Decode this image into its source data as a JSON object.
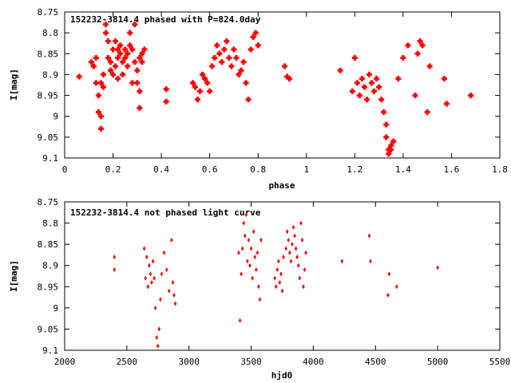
{
  "chart_data": [
    {
      "type": "scatter",
      "title": "152232-3814.4 phased with P=824.0day",
      "xlabel": "phase",
      "ylabel": "I[mag]",
      "xlim": [
        0,
        1.8
      ],
      "ylim": [
        9.1,
        8.75
      ],
      "y_inverted": true,
      "grid": false,
      "marker_color": "#ff0000",
      "marker": "filled-cross",
      "x_ticks": [
        "0",
        "0.2",
        "0.4",
        "0.6",
        "0.8",
        "1",
        "1.2",
        "1.4",
        "1.6",
        "1.8"
      ],
      "y_ticks": [
        "8.75",
        "8.8",
        "8.85",
        "8.9",
        "8.95",
        "9",
        "9.05",
        "9.1"
      ],
      "series": [
        {
          "x": [
            0.06,
            0.11,
            0.12,
            0.13,
            0.13,
            0.14,
            0.14,
            0.15,
            0.15,
            0.15,
            0.16,
            0.16,
            0.17,
            0.17,
            0.18,
            0.18,
            0.19,
            0.19,
            0.2,
            0.2,
            0.21,
            0.21,
            0.22,
            0.22,
            0.22,
            0.23,
            0.23,
            0.24,
            0.24,
            0.25,
            0.25,
            0.26,
            0.26,
            0.27,
            0.27,
            0.28,
            0.28,
            0.29,
            0.29,
            0.3,
            0.3,
            0.31,
            0.31,
            0.31,
            0.32,
            0.32,
            0.33,
            0.42,
            0.42,
            0.53,
            0.54,
            0.55,
            0.56,
            0.57,
            0.58,
            0.59,
            0.6,
            0.61,
            0.62,
            0.63,
            0.64,
            0.65,
            0.66,
            0.67,
            0.68,
            0.69,
            0.7,
            0.71,
            0.72,
            0.73,
            0.74,
            0.75,
            0.76,
            0.77,
            0.78,
            0.79,
            0.8,
            0.91,
            0.92,
            0.93,
            1.14,
            1.19,
            1.2,
            1.21,
            1.22,
            1.23,
            1.24,
            1.25,
            1.26,
            1.27,
            1.28,
            1.29,
            1.3,
            1.31,
            1.32,
            1.33,
            1.33,
            1.34,
            1.34,
            1.35,
            1.35,
            1.36,
            1.38,
            1.4,
            1.42,
            1.45,
            1.46,
            1.47,
            1.48,
            1.5,
            1.51,
            1.57,
            1.58,
            1.68
          ],
          "y": [
            8.905,
            8.87,
            8.88,
            8.92,
            8.86,
            8.95,
            8.99,
            9.0,
            9.03,
            8.92,
            8.93,
            8.9,
            8.8,
            8.78,
            8.82,
            8.86,
            8.87,
            8.89,
            8.84,
            8.9,
            8.88,
            8.82,
            8.84,
            8.86,
            8.91,
            8.85,
            8.83,
            8.87,
            8.9,
            8.84,
            8.86,
            8.88,
            8.85,
            8.83,
            8.8,
            8.84,
            8.92,
            8.87,
            8.78,
            8.89,
            8.92,
            8.86,
            8.94,
            8.98,
            8.87,
            8.85,
            8.84,
            8.935,
            8.965,
            8.92,
            8.93,
            8.96,
            8.94,
            8.9,
            8.91,
            8.92,
            8.94,
            8.88,
            8.86,
            8.83,
            8.85,
            8.87,
            8.84,
            8.82,
            8.86,
            8.88,
            8.84,
            8.86,
            8.9,
            8.89,
            8.87,
            8.92,
            8.96,
            8.84,
            8.81,
            8.8,
            8.83,
            8.88,
            8.905,
            8.91,
            8.89,
            8.94,
            8.86,
            8.92,
            8.95,
            8.91,
            8.93,
            8.96,
            8.9,
            8.92,
            8.94,
            8.91,
            8.93,
            8.96,
            8.99,
            9.02,
            9.05,
            9.08,
            9.09,
            9.07,
            9.08,
            9.06,
            8.91,
            8.86,
            8.83,
            8.95,
            8.85,
            8.82,
            8.83,
            8.99,
            8.88,
            8.91,
            8.97,
            8.95
          ],
          "note": ""
        }
      ]
    },
    {
      "type": "scatter",
      "title": "152232-3814.4 not phased light curve",
      "xlabel": "hjd0",
      "ylabel": "I[mag]",
      "xlim": [
        2000,
        5500
      ],
      "ylim": [
        9.1,
        8.75
      ],
      "y_inverted": true,
      "grid": false,
      "marker_color": "#ff0000",
      "marker": "small-diamond",
      "x_ticks": [
        "2000",
        "2500",
        "3000",
        "3500",
        "4000",
        "4500",
        "5000",
        "5500"
      ],
      "y_ticks": [
        "8.75",
        "8.8",
        "8.85",
        "8.9",
        "8.95",
        "9",
        "9.05",
        "9.1"
      ],
      "series": [
        {
          "x": [
            2400,
            2400,
            2640,
            2650,
            2660,
            2670,
            2680,
            2690,
            2700,
            2710,
            2720,
            2730,
            2740,
            2750,
            2760,
            2770,
            2780,
            2800,
            2820,
            2840,
            2860,
            2870,
            2880,
            2890,
            3400,
            3410,
            3420,
            3430,
            3440,
            3450,
            3460,
            3470,
            3480,
            3490,
            3500,
            3510,
            3520,
            3530,
            3540,
            3550,
            3560,
            3570,
            3580,
            3690,
            3700,
            3710,
            3720,
            3730,
            3740,
            3750,
            3760,
            3780,
            3790,
            3800,
            3810,
            3820,
            3830,
            3840,
            3850,
            3860,
            3870,
            3880,
            3890,
            3900,
            3910,
            3920,
            3930,
            3940,
            4230,
            4450,
            4460,
            4600,
            4610,
            4670,
            5000
          ],
          "y": [
            8.88,
            8.91,
            8.86,
            8.93,
            8.88,
            8.95,
            8.9,
            8.92,
            8.94,
            8.89,
            8.93,
            9.0,
            9.07,
            9.09,
            9.05,
            8.98,
            8.92,
            8.87,
            8.91,
            8.96,
            8.84,
            8.94,
            8.97,
            8.99,
            8.87,
            9.03,
            8.92,
            8.86,
            8.8,
            8.83,
            8.78,
            8.89,
            8.84,
            8.9,
            8.86,
            8.93,
            8.82,
            8.88,
            8.91,
            8.87,
            8.95,
            8.98,
            8.84,
            8.93,
            8.95,
            8.91,
            8.89,
            8.94,
            8.92,
            8.96,
            8.88,
            8.86,
            8.82,
            8.84,
            8.87,
            8.89,
            8.85,
            8.81,
            8.83,
            8.86,
            8.88,
            8.9,
            8.93,
            8.8,
            8.84,
            8.95,
            8.91,
            8.87,
            8.89,
            8.83,
            8.89,
            8.97,
            8.92,
            8.95,
            8.905
          ],
          "note": ""
        }
      ]
    }
  ]
}
